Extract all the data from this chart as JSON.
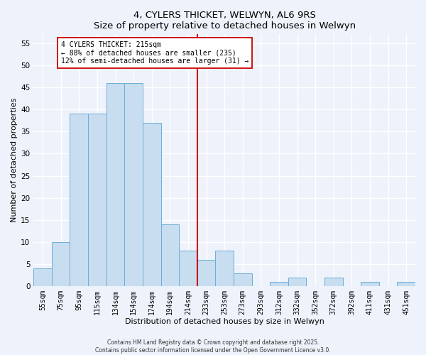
{
  "title": "4, CYLERS THICKET, WELWYN, AL6 9RS",
  "subtitle": "Size of property relative to detached houses in Welwyn",
  "xlabel": "Distribution of detached houses by size in Welwyn",
  "ylabel": "Number of detached properties",
  "bar_labels": [
    "55sqm",
    "75sqm",
    "95sqm",
    "115sqm",
    "134sqm",
    "154sqm",
    "174sqm",
    "194sqm",
    "214sqm",
    "233sqm",
    "253sqm",
    "273sqm",
    "293sqm",
    "312sqm",
    "332sqm",
    "352sqm",
    "372sqm",
    "392sqm",
    "411sqm",
    "431sqm",
    "451sqm"
  ],
  "bar_values": [
    4,
    10,
    39,
    39,
    46,
    46,
    37,
    14,
    8,
    6,
    8,
    3,
    0,
    1,
    2,
    0,
    2,
    0,
    1,
    0,
    1
  ],
  "bar_color": "#c8ddf0",
  "bar_edge_color": "#6baed6",
  "vline_color": "#cc0000",
  "annotation_text": "4 CYLERS THICKET: 215sqm\n← 88% of detached houses are smaller (235)\n12% of semi-detached houses are larger (31) →",
  "annotation_box_facecolor": "#ffffff",
  "annotation_box_edgecolor": "#cc0000",
  "ylim": [
    0,
    57
  ],
  "yticks": [
    0,
    5,
    10,
    15,
    20,
    25,
    30,
    35,
    40,
    45,
    50,
    55
  ],
  "bg_color": "#eef2fb",
  "grid_color": "#ffffff",
  "footer1": "Contains HM Land Registry data © Crown copyright and database right 2025.",
  "footer2": "Contains public sector information licensed under the Open Government Licence v3.0.",
  "title_fontsize": 9.5,
  "axis_label_fontsize": 8,
  "tick_fontsize": 7,
  "annotation_fontsize": 7,
  "footer_fontsize": 5.5
}
